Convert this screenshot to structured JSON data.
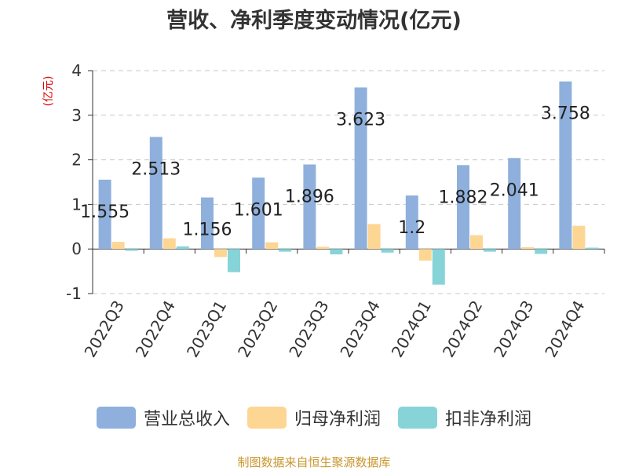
{
  "chart_data": {
    "type": "bar",
    "title": "营收、净利季度变动情况(亿元)",
    "ylabel": "(亿元)",
    "xlabel": "",
    "ylim": [
      -1,
      4
    ],
    "yticks": [
      -1,
      0,
      1,
      2,
      3,
      4
    ],
    "grid": true,
    "legend_position": "bottom",
    "categories": [
      "2022Q3",
      "2022Q4",
      "2023Q1",
      "2023Q2",
      "2023Q3",
      "2023Q4",
      "2024Q1",
      "2024Q2",
      "2024Q3",
      "2024Q4"
    ],
    "series": [
      {
        "name": "营业总收入",
        "color": "#8fb0dc",
        "values": [
          1.555,
          2.513,
          1.156,
          1.601,
          1.896,
          3.623,
          1.2,
          1.882,
          2.041,
          3.758
        ]
      },
      {
        "name": "归母净利润",
        "color": "#fdd694",
        "values": [
          0.16,
          0.24,
          -0.18,
          0.15,
          0.05,
          0.56,
          -0.26,
          0.31,
          0.04,
          0.52
        ]
      },
      {
        "name": "扣非净利润",
        "color": "#86d4d8",
        "values": [
          -0.04,
          0.06,
          -0.52,
          -0.06,
          -0.12,
          -0.08,
          -0.8,
          -0.06,
          -0.11,
          0.03
        ]
      }
    ],
    "data_labels": [
      "1.555",
      "2.513",
      "1.156",
      "1.601",
      "1.896",
      "3.623",
      "1.2",
      "1.882",
      "2.041",
      "3.758"
    ]
  },
  "source_note": "制图数据来自恒生聚源数据库"
}
